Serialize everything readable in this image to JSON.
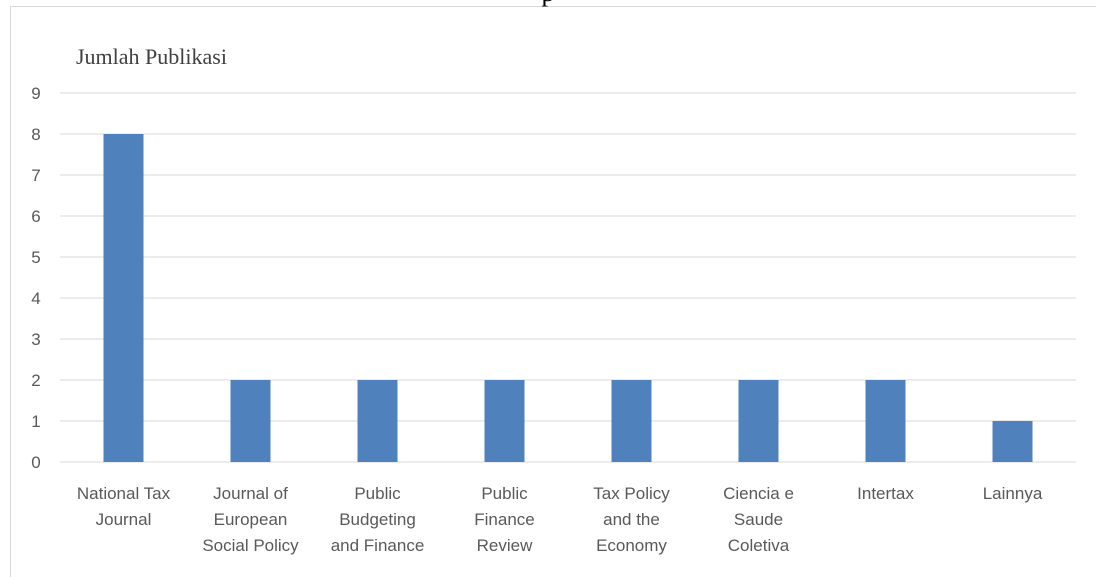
{
  "header": {
    "clipped_text": "p"
  },
  "chart_data": {
    "type": "bar",
    "ylabel": "Jumlah Publikasi",
    "xlabel": "",
    "title": "",
    "categories": [
      [
        "National Tax",
        "Journal"
      ],
      [
        "Journal of",
        "European",
        "Social Policy"
      ],
      [
        "Public",
        "Budgeting",
        "and Finance"
      ],
      [
        "Public",
        "Finance",
        "Review"
      ],
      [
        "Tax Policy",
        "and the",
        "Economy"
      ],
      [
        "Ciencia e",
        "Saude",
        "Coletiva"
      ],
      [
        "Intertax"
      ],
      [
        "Lainnya"
      ]
    ],
    "values": [
      8,
      2,
      2,
      2,
      2,
      2,
      2,
      1
    ],
    "ylim": [
      0,
      9
    ],
    "yticks": [
      0,
      1,
      2,
      3,
      4,
      5,
      6,
      7,
      8,
      9
    ],
    "grid": true,
    "legend": "none",
    "colors": {
      "bar": "#4f81bd",
      "grid": "#d9d9d9",
      "axis": "#d9d9d9",
      "text": "#595959"
    }
  }
}
